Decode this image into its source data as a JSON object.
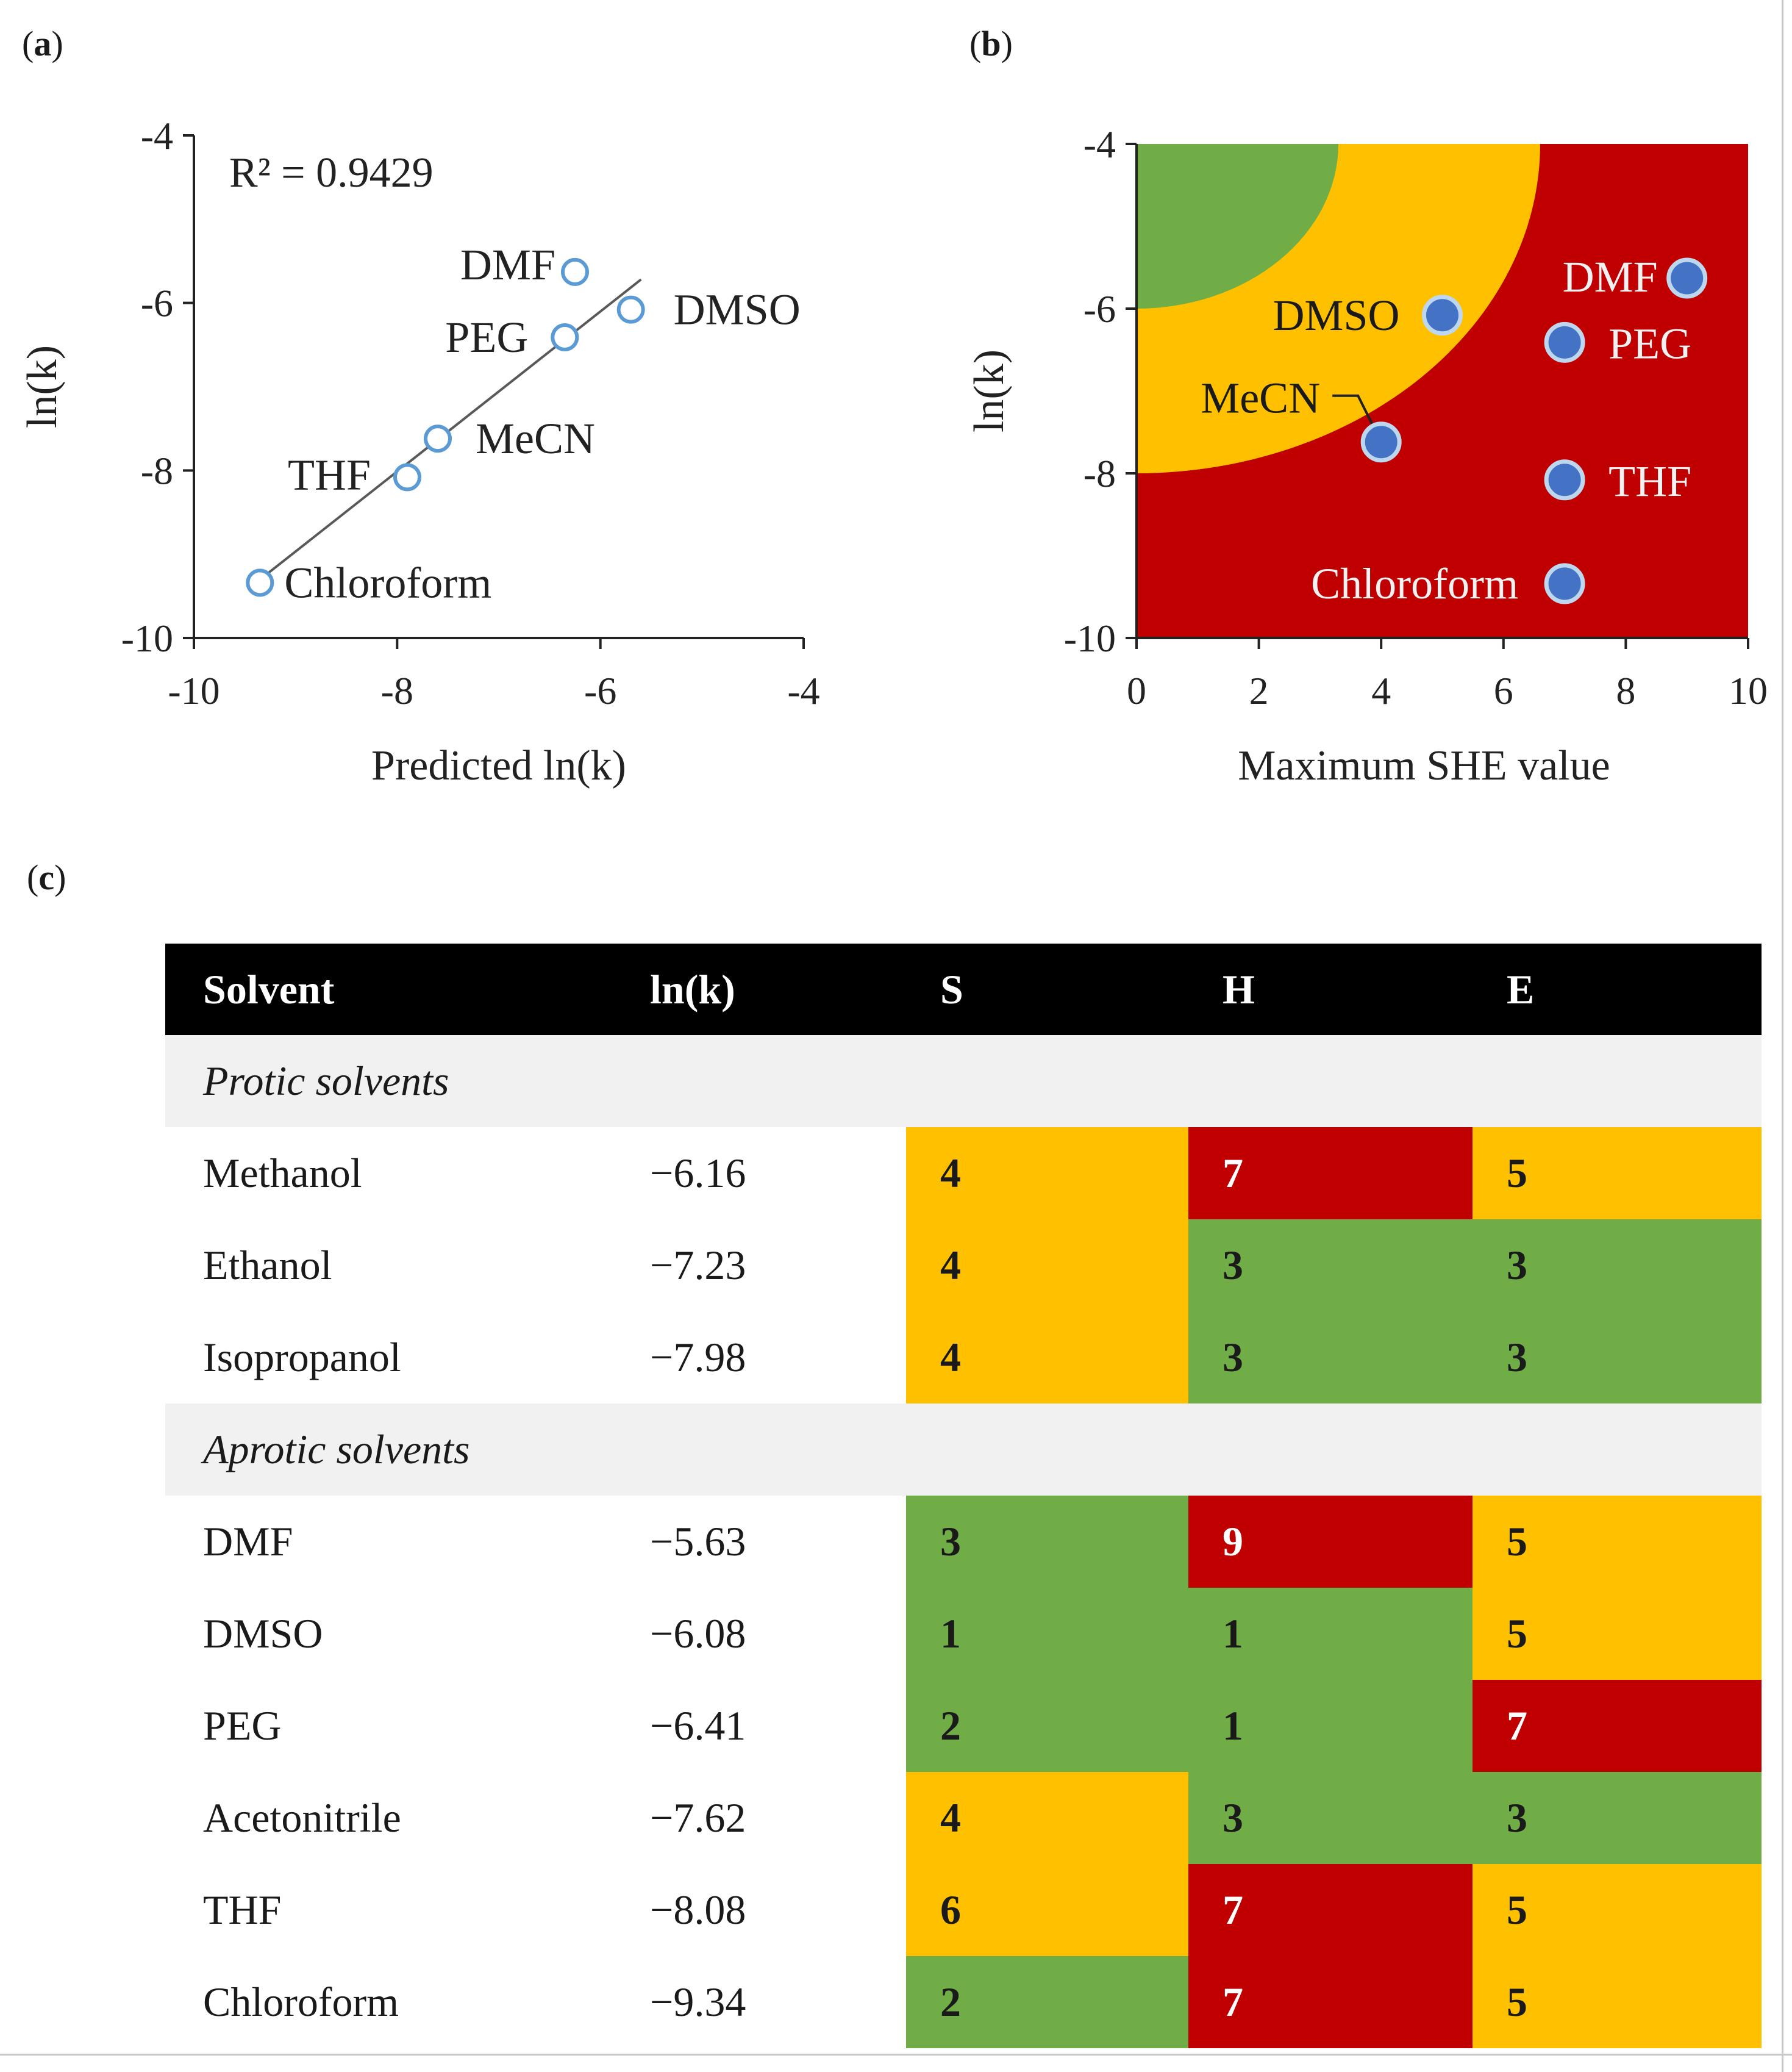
{
  "panels": {
    "a": {
      "paren_open": "(",
      "letter": "a",
      "paren_close": ")"
    },
    "b": {
      "paren_open": "(",
      "letter": "b",
      "paren_close": ")"
    },
    "c": {
      "paren_open": "(",
      "letter": "c",
      "paren_close": ")"
    }
  },
  "chart_data": [
    {
      "type": "scatter",
      "panel": "a",
      "xlabel": "Predicted ln(k)",
      "ylabel": "ln(k)",
      "xlim": [
        -10,
        -4
      ],
      "ylim": [
        -10,
        -4
      ],
      "x_ticks": [
        -10,
        -8,
        -6,
        -4
      ],
      "y_ticks": [
        -4,
        -6,
        -8,
        -10
      ],
      "x_tick_labels": [
        "-10",
        "-8",
        "-6",
        "-4"
      ],
      "y_tick_labels": [
        "-4",
        "-6",
        "-8",
        "-10"
      ],
      "grid": false,
      "annotation": "R² = 0.9429",
      "trendline": {
        "x": [
          -9.4,
          -5.6
        ],
        "y": [
          -9.35,
          -5.72
        ]
      },
      "points": [
        {
          "label": "DMF",
          "x": -6.25,
          "y": -5.63
        },
        {
          "label": "DMSO",
          "x": -5.7,
          "y": -6.08
        },
        {
          "label": "PEG",
          "x": -6.35,
          "y": -6.41
        },
        {
          "label": "MeCN",
          "x": -7.6,
          "y": -7.62
        },
        {
          "label": "THF",
          "x": -7.9,
          "y": -8.08
        },
        {
          "label": "Chloroform",
          "x": -9.35,
          "y": -9.34
        }
      ],
      "colors": {
        "marker": "#5b9bd5",
        "trendline": "#595959"
      }
    },
    {
      "type": "scatter",
      "panel": "b",
      "xlabel": "Maximum SHE value",
      "ylabel": "ln(k)",
      "xlim": [
        0,
        10
      ],
      "ylim": [
        -10,
        -4
      ],
      "x_ticks": [
        0,
        2,
        4,
        6,
        8,
        10
      ],
      "y_ticks": [
        -4,
        -6,
        -8,
        -10
      ],
      "x_tick_labels": [
        "0",
        "2",
        "4",
        "6",
        "8",
        "10"
      ],
      "y_tick_labels": [
        "-4",
        "-6",
        "-8",
        "-10"
      ],
      "grid": false,
      "background_zones": [
        {
          "name": "red",
          "color": "#c00000"
        },
        {
          "name": "yellow",
          "color": "#ffc000",
          "radius_x": 6.6,
          "radius_y": 4.0
        },
        {
          "name": "green",
          "color": "#70ad47",
          "radius_x": 3.3,
          "radius_y": 2.0
        }
      ],
      "points": [
        {
          "label": "DMF",
          "x": 9,
          "y": -5.63
        },
        {
          "label": "PEG",
          "x": 7,
          "y": -6.41
        },
        {
          "label": "DMSO",
          "x": 5,
          "y": -6.08
        },
        {
          "label": "MeCN",
          "x": 4,
          "y": -7.62
        },
        {
          "label": "THF",
          "x": 7,
          "y": -8.08
        },
        {
          "label": "Chloroform",
          "x": 7,
          "y": -9.34
        }
      ],
      "colors": {
        "marker": "#4472c4",
        "marker_edge": "#bdd7ee",
        "label_dark": "#1a1a1a",
        "label_light": "#f2f2f2"
      }
    },
    {
      "type": "table",
      "panel": "c",
      "columns": [
        "Solvent",
        "ln(k)",
        "S",
        "H",
        "E"
      ],
      "groups": [
        {
          "name": "Protic solvents",
          "rows": [
            {
              "solvent": "Methanol",
              "lnk": "−6.16",
              "S": "4",
              "H": "7",
              "E": "5"
            },
            {
              "solvent": "Ethanol",
              "lnk": "−7.23",
              "S": "4",
              "H": "3",
              "E": "3"
            },
            {
              "solvent": "Isopropanol",
              "lnk": "−7.98",
              "S": "4",
              "H": "3",
              "E": "3"
            }
          ]
        },
        {
          "name": "Aprotic solvents",
          "rows": [
            {
              "solvent": "DMF",
              "lnk": "−5.63",
              "S": "3",
              "H": "9",
              "E": "5"
            },
            {
              "solvent": "DMSO",
              "lnk": "−6.08",
              "S": "1",
              "H": "1",
              "E": "5"
            },
            {
              "solvent": "PEG",
              "lnk": "−6.41",
              "S": "2",
              "H": "1",
              "E": "7"
            },
            {
              "solvent": "Acetonitrile",
              "lnk": "−7.62",
              "S": "4",
              "H": "3",
              "E": "3"
            },
            {
              "solvent": "THF",
              "lnk": "−8.08",
              "S": "6",
              "H": "7",
              "E": "5"
            },
            {
              "solvent": "Chloroform",
              "lnk": "−9.34",
              "S": "2",
              "H": "7",
              "E": "5"
            }
          ]
        }
      ],
      "severity_colors": {
        "green": "#70ad47",
        "yellow": "#ffc000",
        "red": "#c00000"
      }
    }
  ]
}
